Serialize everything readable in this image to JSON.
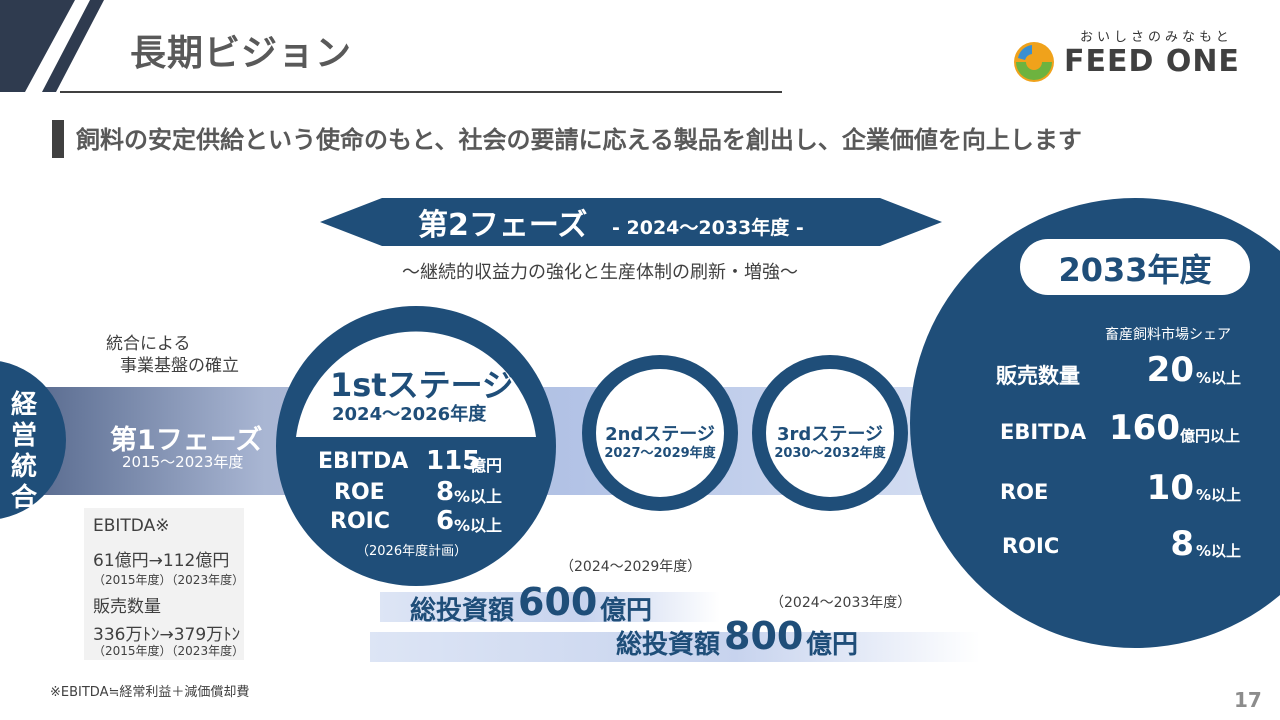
{
  "header": {
    "title": "長期ビジョン",
    "brand_tagline": "おいしさのみなもと",
    "brand_name": "FEED ONE",
    "subtitle": "飼料の安定供給という使命のもと、社会の要請に応える製品を創出し、企業価値を向上します"
  },
  "phase2": {
    "title": "第2フェーズ",
    "period": "- 2024～2033年度 -",
    "subtitle": "～継続的収益力の強化と生産体制の刷新・増強～"
  },
  "left": {
    "vertical_label": "経営統合",
    "integration_line1": "統合による",
    "integration_line2": "事業基盤の確立",
    "phase1_title": "第1フェーズ",
    "phase1_period": "2015～2023年度",
    "history": {
      "ebitda_label": "EBITDA※",
      "ebitda_values": "61億円→112億円",
      "ebitda_years": "（2015年度）（2023年度）",
      "sales_label": "販売数量",
      "sales_values": "336万ﾄﾝ→379万ﾄﾝ",
      "sales_years": "（2015年度）（2023年度）"
    }
  },
  "stage1": {
    "title": "1stステージ",
    "period": "2024～2026年度",
    "rows": [
      {
        "label": "EBITDA",
        "value": "115",
        "unit": "億円"
      },
      {
        "label": "ROE",
        "value": "8",
        "unit": "%以上"
      },
      {
        "label": "ROIC",
        "value": "6",
        "unit": "%以上"
      }
    ],
    "plan_note": "（2026年度計画）"
  },
  "stage2": {
    "title": "2ndステージ",
    "period": "2027～2029年度"
  },
  "stage3": {
    "title": "3rdステージ",
    "period": "2030～2032年度"
  },
  "investment": {
    "a_period": "（2024～2029年度）",
    "a_label": "総投資額",
    "a_value": "600",
    "a_unit": "億円",
    "b_period": "（2024～2033年度）",
    "b_label": "総投資額",
    "b_value": "800",
    "b_unit": "億円"
  },
  "target": {
    "year": "2033年度",
    "caption": "畜産飼料市場シェア",
    "rows": [
      {
        "label": "販売数量",
        "value": "20",
        "unit": "%以上"
      },
      {
        "label": "EBITDA",
        "value": "160",
        "unit": "億円以上"
      },
      {
        "label": "ROE",
        "value": "10",
        "unit": "%以上"
      },
      {
        "label": "ROIC",
        "value": "8",
        "unit": "%以上"
      }
    ]
  },
  "footer": {
    "footnote": "※EBITDA≒経常利益＋減価償却費",
    "page_number": "17"
  },
  "colors": {
    "navy": "#1f4e79",
    "band": "#c9d6ee",
    "gray_text": "#595959"
  }
}
